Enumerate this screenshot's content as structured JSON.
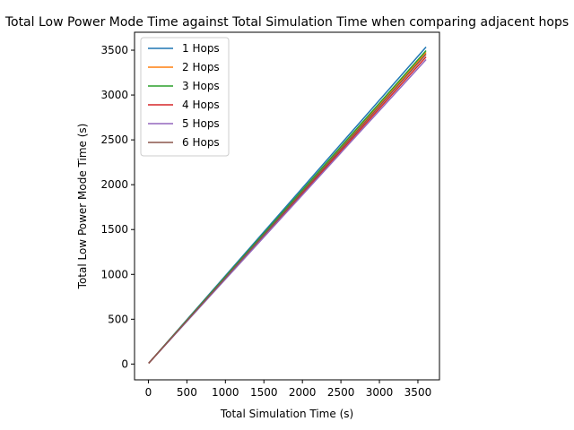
{
  "chart_data": {
    "type": "line",
    "title": "Total Low Power Mode Time against Total Simulation Time when comparing adjacent hops",
    "xlabel": "Total Simulation Time (s)",
    "ylabel": "Total Low Power Mode Time (s)",
    "xlim": [
      -180,
      3780
    ],
    "ylim": [
      -176,
      3700
    ],
    "xticks": [
      0,
      500,
      1000,
      1500,
      2000,
      2500,
      3000,
      3500
    ],
    "yticks": [
      0,
      500,
      1000,
      1500,
      2000,
      2500,
      3000,
      3500
    ],
    "grid": false,
    "legend": "upper left",
    "series": [
      {
        "name": "1 Hops",
        "color": "#1f77b4",
        "x": [
          10,
          3600
        ],
        "y": [
          15,
          3530
        ]
      },
      {
        "name": "2 Hops",
        "color": "#ff7f0e",
        "x": [
          10,
          3600
        ],
        "y": [
          15,
          3470
        ]
      },
      {
        "name": "3 Hops",
        "color": "#2ca02c",
        "x": [
          10,
          3600
        ],
        "y": [
          15,
          3490
        ]
      },
      {
        "name": "4 Hops",
        "color": "#d62728",
        "x": [
          10,
          3600
        ],
        "y": [
          15,
          3420
        ]
      },
      {
        "name": "5 Hops",
        "color": "#9467bd",
        "x": [
          10,
          3600
        ],
        "y": [
          15,
          3390
        ]
      },
      {
        "name": "6 Hops",
        "color": "#8c564b",
        "x": [
          10,
          3600
        ],
        "y": [
          15,
          3450
        ]
      }
    ]
  }
}
